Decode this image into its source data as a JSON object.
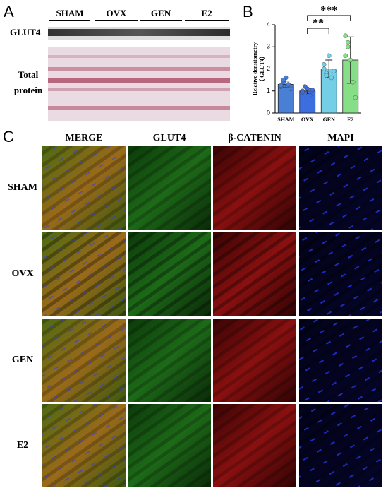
{
  "panel_a": {
    "label": "A",
    "lanes": [
      "SHAM",
      "OVX",
      "GEN",
      "E2"
    ],
    "rows": [
      "GLUT4",
      "Total protein"
    ]
  },
  "chart_data": {
    "type": "bar",
    "label": "B",
    "ylabel": [
      "Relative densitometry",
      "（ GLUT4）"
    ],
    "categories": [
      "SHAM",
      "OVX",
      "GEN",
      "E2"
    ],
    "values": [
      1.3,
      1.0,
      2.0,
      2.4
    ],
    "errors": [
      0.15,
      0.12,
      0.4,
      1.05
    ],
    "points": [
      [
        1.2,
        1.4,
        1.6,
        1.3,
        1.1,
        1.25,
        1.5
      ],
      [
        1.0,
        0.9,
        1.1,
        0.8,
        1.05,
        0.95,
        1.2
      ],
      [
        2.0,
        1.8,
        2.6,
        1.6,
        1.9,
        2.2,
        1.7
      ],
      [
        3.5,
        3.2,
        2.4,
        1.4,
        0.7,
        2.6,
        3.0
      ]
    ],
    "colors": [
      "#4a7fd6",
      "#3d6ee0",
      "#74cfe6",
      "#86de86"
    ],
    "ylim": [
      0,
      4
    ],
    "yticks": [
      0,
      1,
      2,
      3,
      4
    ],
    "annotations": [
      "**",
      "***"
    ]
  },
  "panel_c": {
    "label": "C",
    "columns": [
      "MERGE",
      "GLUT4",
      "β-CATENIN",
      "MAPI"
    ],
    "rows": [
      "SHAM",
      "OVX",
      "GEN",
      "E2"
    ]
  }
}
